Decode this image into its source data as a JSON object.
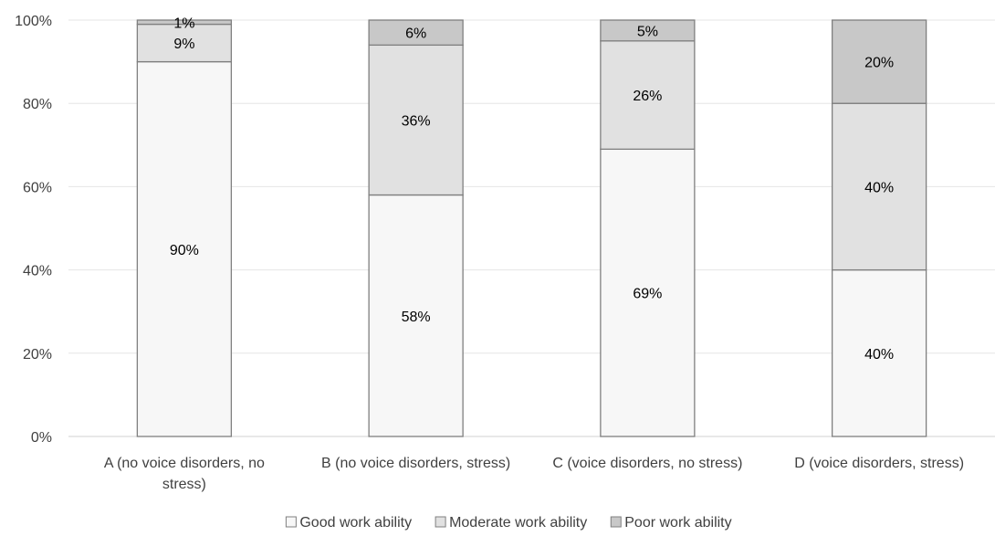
{
  "chart_data": {
    "type": "bar",
    "stacked": true,
    "categories": [
      [
        "A (no voice disorders, no",
        "stress)"
      ],
      [
        "B (no voice disorders, stress)"
      ],
      [
        "C (voice disorders, no stress)"
      ],
      [
        "D (voice disorders, stress)"
      ]
    ],
    "series": [
      {
        "name": "Good work ability",
        "color": "#f7f7f7",
        "values": [
          90,
          58,
          69,
          40
        ],
        "labels": [
          "90%",
          "58%",
          "69%",
          "40%"
        ]
      },
      {
        "name": "Moderate work ability",
        "color": "#e1e1e1",
        "values": [
          9,
          36,
          26,
          40
        ],
        "labels": [
          "9%",
          "36%",
          "26%",
          "40%"
        ]
      },
      {
        "name": "Poor work ability",
        "color": "#c8c8c8",
        "values": [
          1,
          6,
          5,
          20
        ],
        "labels": [
          "1%",
          "6%",
          "5%",
          "20%"
        ]
      }
    ],
    "yticks": [
      "0%",
      "20%",
      "40%",
      "60%",
      "80%",
      "100%"
    ],
    "ylim": [
      0,
      100
    ],
    "grid": true,
    "legend_position": "bottom",
    "bar_edge_color": "#7f7f7f",
    "grid_color": "#e6e6e6"
  }
}
